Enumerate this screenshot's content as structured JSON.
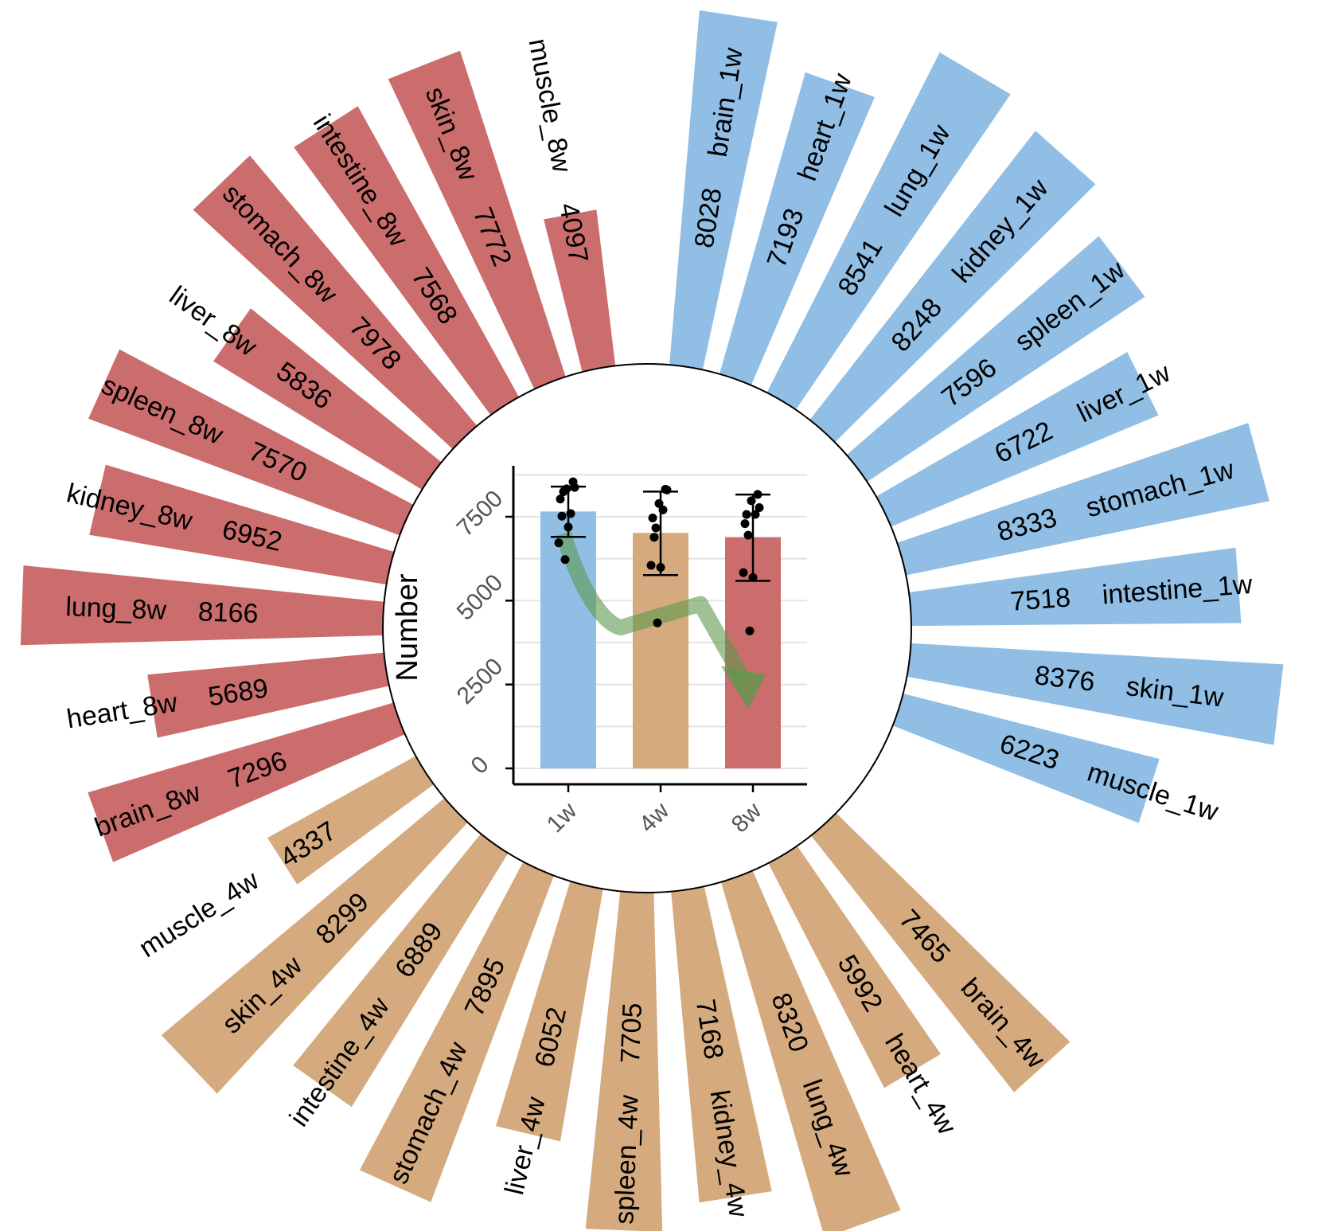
{
  "chart_data": [
    {
      "type": "bar",
      "subtype": "circular-bar",
      "colors": {
        "1w": "#90bee5",
        "4w": "#d4aa7e",
        "8w": "#cb6d6d"
      },
      "groups": [
        {
          "name": "1w",
          "bars": [
            {
              "label": "brain_1w",
              "value": "8028"
            },
            {
              "label": "heart_1w",
              "value": "7193"
            },
            {
              "label": "lung_1w",
              "value": "8541"
            },
            {
              "label": "kidney_1w",
              "value": "8248"
            },
            {
              "label": "spleen_1w",
              "value": "7596"
            },
            {
              "label": "liver_1w",
              "value": "6722"
            },
            {
              "label": "stomach_1w",
              "value": "8333"
            },
            {
              "label": "intestine_1w",
              "value": "7518"
            },
            {
              "label": "skin_1w",
              "value": "8376"
            },
            {
              "label": "muscle_1w",
              "value": "6223"
            }
          ]
        },
        {
          "name": "4w",
          "bars": [
            {
              "label": "brain_4w",
              "value": "7465"
            },
            {
              "label": "heart_4w",
              "value": "5992"
            },
            {
              "label": "lung_4w",
              "value": "8320"
            },
            {
              "label": "kidney_4w",
              "value": "7168"
            },
            {
              "label": "spleen_4w",
              "value": "7705"
            },
            {
              "label": "liver_4w",
              "value": "6052"
            },
            {
              "label": "stomach_4w",
              "value": "7895"
            },
            {
              "label": "intestine_4w",
              "value": "6889"
            },
            {
              "label": "skin_4w",
              "value": "8299"
            },
            {
              "label": "muscle_4w",
              "value": "4337"
            }
          ]
        },
        {
          "name": "8w",
          "bars": [
            {
              "label": "brain_8w",
              "value": "7296"
            },
            {
              "label": "heart_8w",
              "value": "5689"
            },
            {
              "label": "lung_8w",
              "value": "8166"
            },
            {
              "label": "kidney_8w",
              "value": "6952"
            },
            {
              "label": "spleen_8w",
              "value": "7570"
            },
            {
              "label": "liver_8w",
              "value": "5836"
            },
            {
              "label": "stomach_8w",
              "value": "7978"
            },
            {
              "label": "intestine_8w",
              "value": "7568"
            },
            {
              "label": "skin_8w",
              "value": "7772"
            },
            {
              "label": "muscle_8w",
              "value": "4097"
            }
          ]
        }
      ]
    },
    {
      "type": "bar",
      "subtype": "bar-with-errorbars-and-points",
      "categories": [
        "1w",
        "4w",
        "8w"
      ],
      "values": [
        7658,
        7019,
        6893
      ],
      "errors": [
        {
          "low": 6900,
          "high": 8400
        },
        {
          "low": 5760,
          "high": 8250
        },
        {
          "low": 5590,
          "high": 8160
        }
      ],
      "points": [
        [
          8028,
          7193,
          8541,
          8248,
          7596,
          6722,
          8333,
          7518,
          8376,
          6223
        ],
        [
          7465,
          5992,
          8320,
          7168,
          7705,
          6052,
          7895,
          6889,
          8299,
          4337
        ],
        [
          7296,
          5689,
          8166,
          6952,
          7570,
          5836,
          7978,
          7568,
          7772,
          4097
        ]
      ],
      "ylabel": "Number",
      "yticks": [
        "0",
        "2500",
        "5000",
        "7500"
      ],
      "ylim": [
        0,
        8900
      ],
      "trend_arrow": {
        "color": "#5d9a4c",
        "from": "1w",
        "to": "8w"
      }
    }
  ]
}
